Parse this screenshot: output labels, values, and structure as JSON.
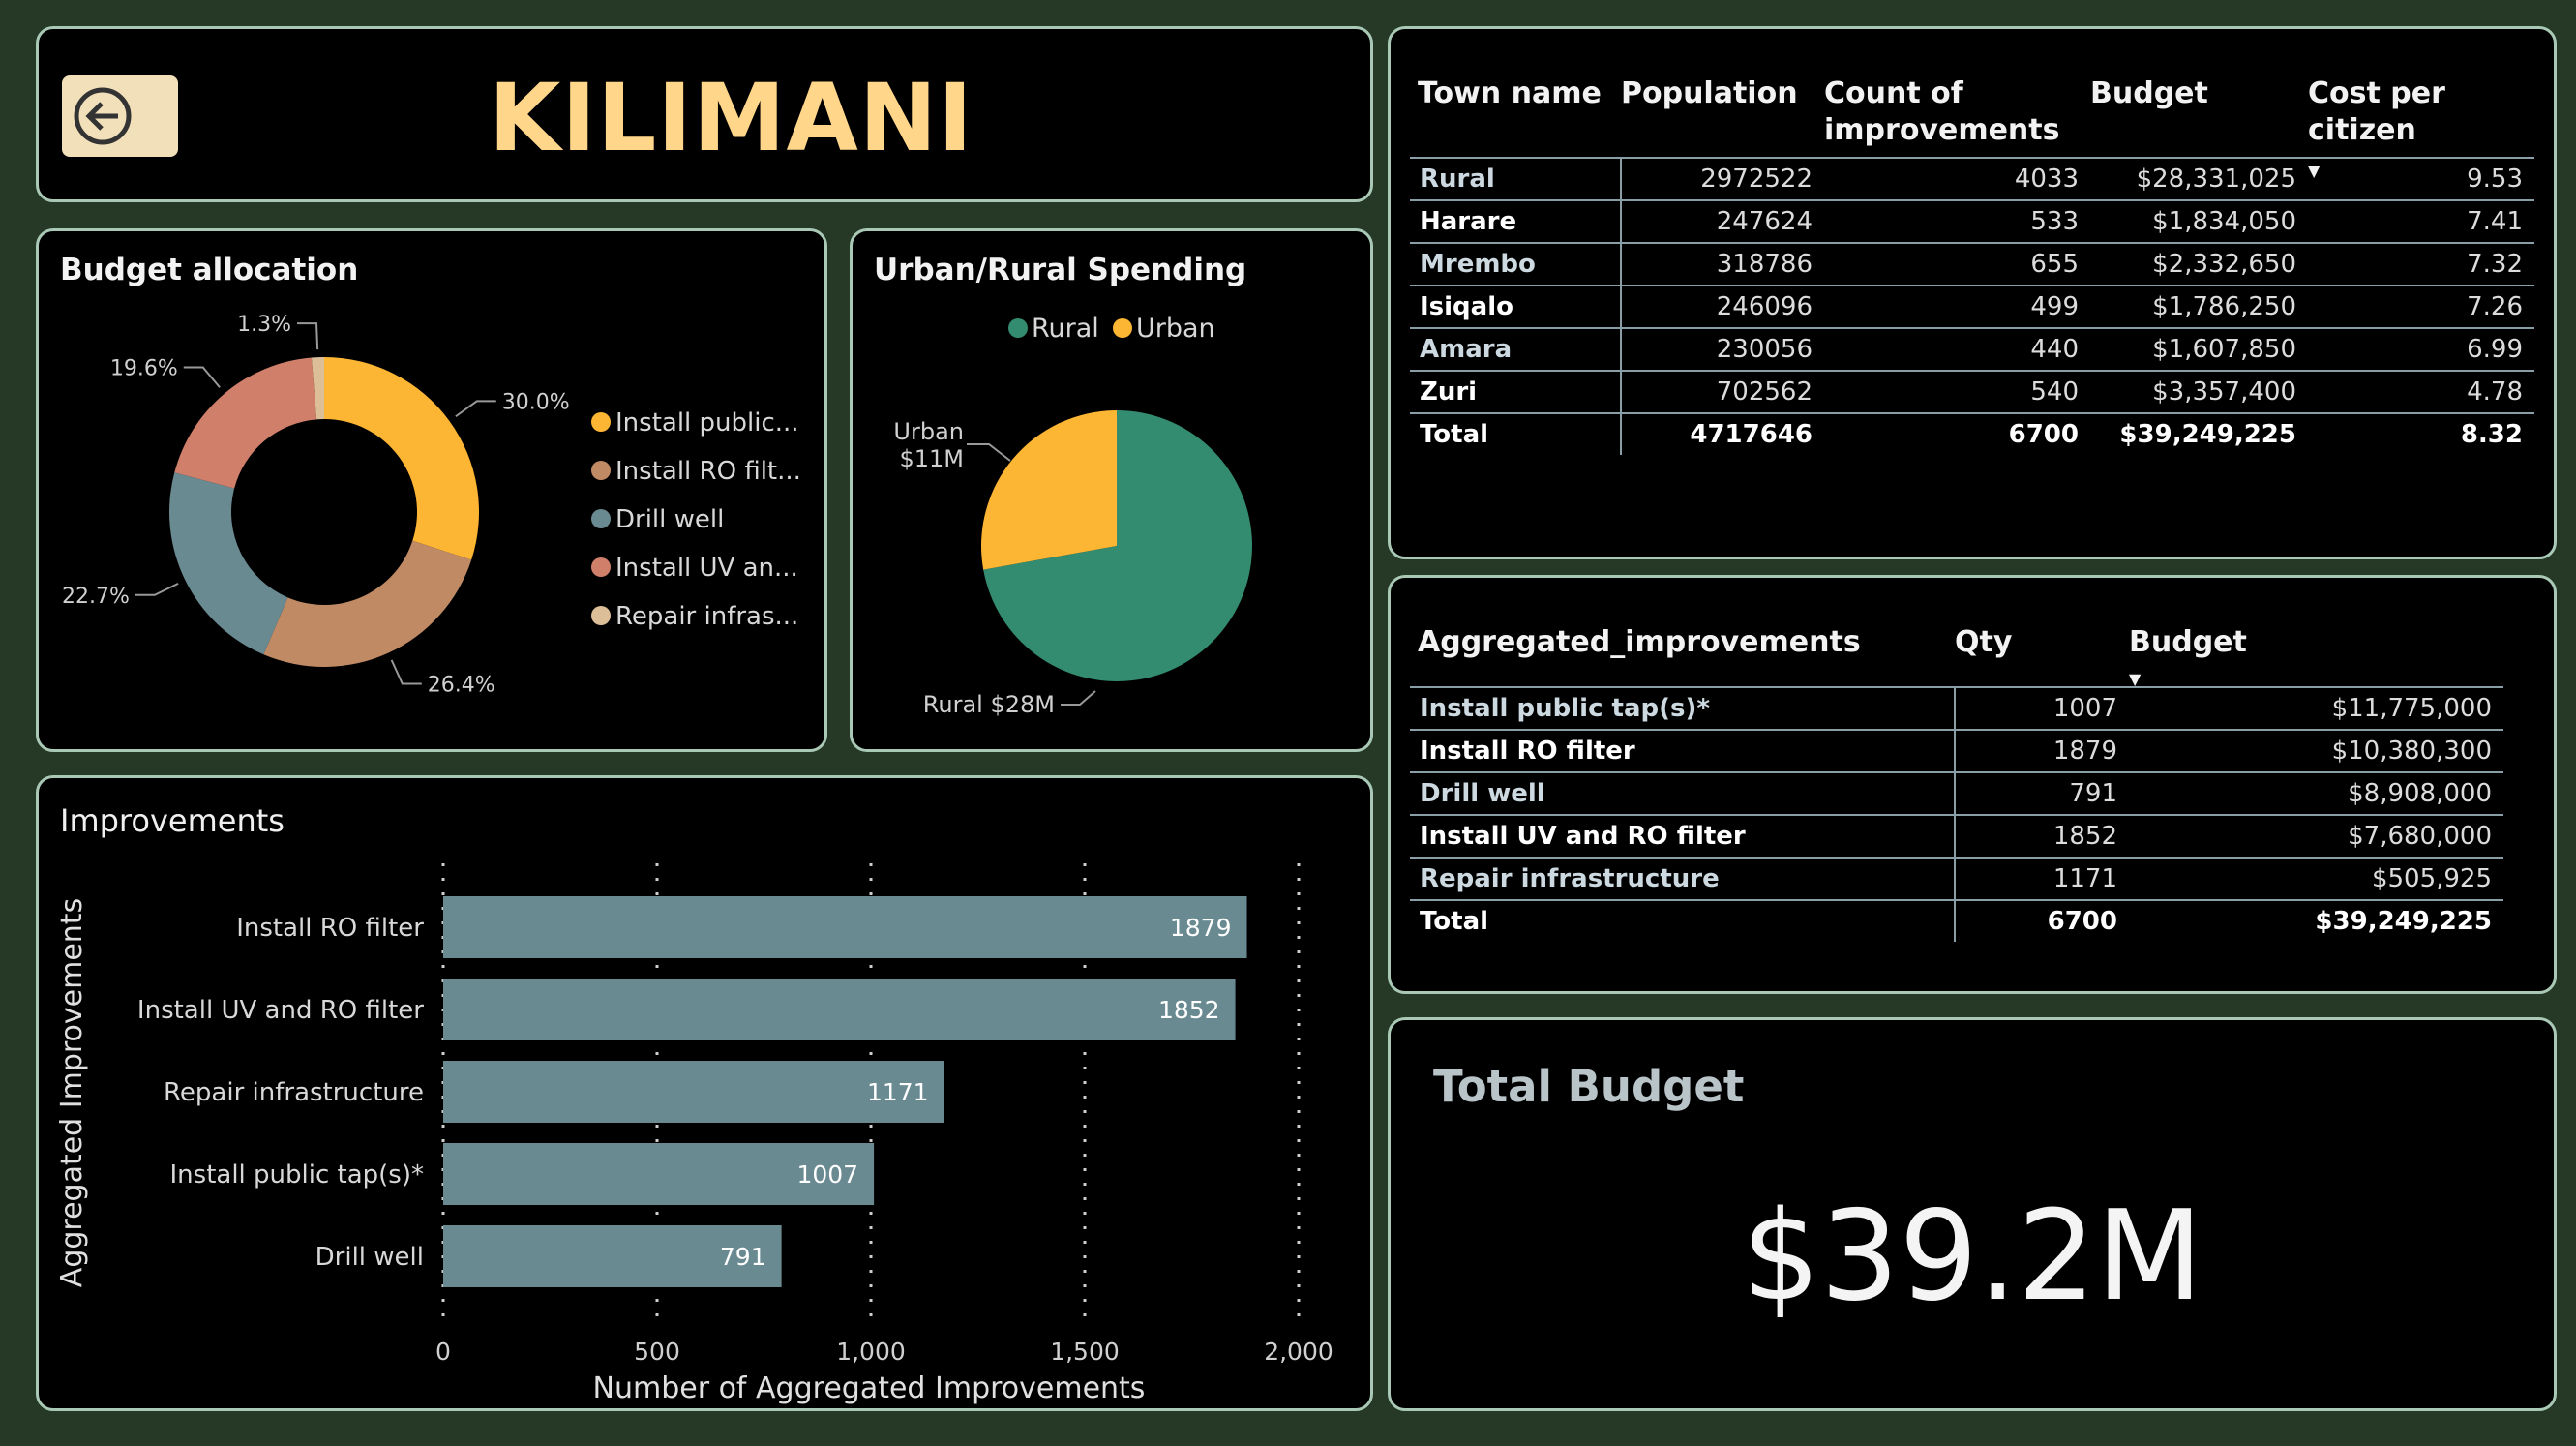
{
  "header": {
    "title": "KILIMANI",
    "back_icon": "back-arrow-icon"
  },
  "colors": {
    "accent": "#ffd68a",
    "panel_border": "#a9c9b6",
    "background": "#263826",
    "rural": "#338c6f",
    "urban": "#fdb534",
    "bar": "#6a8a92"
  },
  "budget_allocation": {
    "title": "Budget allocation",
    "slices": [
      {
        "label": "Install public...",
        "pct_label": "30.0%",
        "value": 30.0,
        "color": "#fdb534"
      },
      {
        "label": "Install RO filt...",
        "pct_label": "26.4%",
        "value": 26.4,
        "color": "#c08a64"
      },
      {
        "label": "Drill well",
        "pct_label": "22.7%",
        "value": 22.7,
        "color": "#6a8a92"
      },
      {
        "label": "Install UV an...",
        "pct_label": "19.6%",
        "value": 19.6,
        "color": "#d07f6b"
      },
      {
        "label": "Repair infras...",
        "pct_label": "1.3%",
        "value": 1.3,
        "color": "#dcbf98"
      }
    ]
  },
  "urban_rural": {
    "title": "Urban/Rural Spending",
    "legend": [
      {
        "name": "Rural",
        "color": "#338c6f"
      },
      {
        "name": "Urban",
        "color": "#fdb534"
      }
    ],
    "slices": [
      {
        "name": "Rural",
        "value": 28331025,
        "label": "Rural $28M",
        "color": "#338c6f"
      },
      {
        "name": "Urban",
        "value": 10918200,
        "label_line1": "Urban",
        "label_line2": "$11M",
        "color": "#fdb534"
      }
    ]
  },
  "chart_data": {
    "type": "bar",
    "title": "Improvements",
    "ylabel": "Aggregated Improvements",
    "xlabel": "Number of Aggregated Improvements",
    "categories": [
      "Install RO filter",
      "Install UV and RO filter",
      "Repair infrastructure",
      "Install public tap(s)*",
      "Drill well"
    ],
    "values": [
      1879,
      1852,
      1171,
      1007,
      791
    ],
    "xlim": [
      0,
      2000
    ],
    "ticks": [
      0,
      500,
      1000,
      1500,
      2000
    ],
    "tick_labels": [
      "0",
      "500",
      "1,000",
      "1,500",
      "2,000"
    ],
    "grid": true
  },
  "towns": {
    "columns": [
      "Town name",
      "Population",
      "Count of improvements",
      "Budget",
      "Cost per citizen"
    ],
    "rows": [
      {
        "name": "Rural",
        "population": "2972522",
        "count": "4033",
        "budget": "$28,331,025",
        "cost": "9.53"
      },
      {
        "name": "Harare",
        "population": "247624",
        "count": "533",
        "budget": "$1,834,050",
        "cost": "7.41"
      },
      {
        "name": "Mrembo",
        "population": "318786",
        "count": "655",
        "budget": "$2,332,650",
        "cost": "7.32"
      },
      {
        "name": "Isiqalo",
        "population": "246096",
        "count": "499",
        "budget": "$1,786,250",
        "cost": "7.26"
      },
      {
        "name": "Amara",
        "population": "230056",
        "count": "440",
        "budget": "$1,607,850",
        "cost": "6.99"
      },
      {
        "name": "Zuri",
        "population": "702562",
        "count": "540",
        "budget": "$3,357,400",
        "cost": "4.78"
      }
    ],
    "total": {
      "name": "Total",
      "population": "4717646",
      "count": "6700",
      "budget": "$39,249,225",
      "cost": "8.32"
    }
  },
  "aggregated": {
    "columns": [
      "Aggregated_improvements",
      "Qty",
      "Budget"
    ],
    "rows": [
      {
        "name": "Install public tap(s)*",
        "qty": "1007",
        "budget": "$11,775,000"
      },
      {
        "name": "Install RO filter",
        "qty": "1879",
        "budget": "$10,380,300"
      },
      {
        "name": "Drill well",
        "qty": "791",
        "budget": "$8,908,000"
      },
      {
        "name": "Install UV and RO filter",
        "qty": "1852",
        "budget": "$7,680,000"
      },
      {
        "name": "Repair infrastructure",
        "qty": "1171",
        "budget": "$505,925"
      }
    ],
    "total": {
      "name": "Total",
      "qty": "6700",
      "budget": "$39,249,225"
    }
  },
  "total_budget": {
    "title": "Total Budget",
    "value": "$39.2M"
  }
}
